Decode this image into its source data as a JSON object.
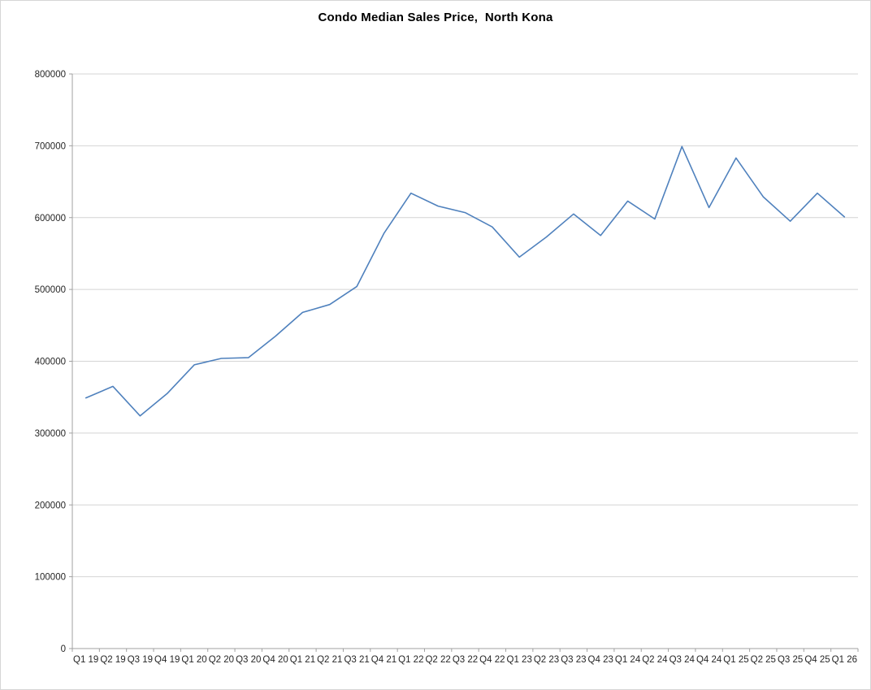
{
  "chart_data": {
    "type": "line",
    "title": "Condo Median Sales Price,  North Kona",
    "xlabel": "",
    "ylabel": "",
    "categories": [
      "Q1 19",
      "Q2 19",
      "Q3 19",
      "Q4 19",
      "Q1 20",
      "Q2 20",
      "Q3 20",
      "Q4 20",
      "Q1 21",
      "Q2 21",
      "Q3 21",
      "Q4 21",
      "Q1 22",
      "Q2 22",
      "Q3 22",
      "Q4 22",
      "Q1 23",
      "Q2 23",
      "Q3 23",
      "Q4 23",
      "Q1 24",
      "Q2 24",
      "Q3 24",
      "Q4 24",
      "Q1 25",
      "Q2 25",
      "Q3 25",
      "Q4 25",
      "Q1 26"
    ],
    "values": [
      349000,
      365000,
      324000,
      355000,
      395000,
      404000,
      405000,
      435000,
      468000,
      479000,
      504000,
      578000,
      634000,
      616000,
      607000,
      587000,
      545000,
      573000,
      605000,
      575000,
      623000,
      598000,
      699000,
      614000,
      683000,
      629000,
      595000,
      634000,
      601000
    ],
    "ylim": [
      0,
      800000
    ],
    "ytick_interval": 100000,
    "grid": true,
    "legend": "none",
    "line_color": "#4f81bd",
    "grid_color": "#d4d4d4",
    "axis_color": "#a0a0a0",
    "text_color": "#262626"
  }
}
